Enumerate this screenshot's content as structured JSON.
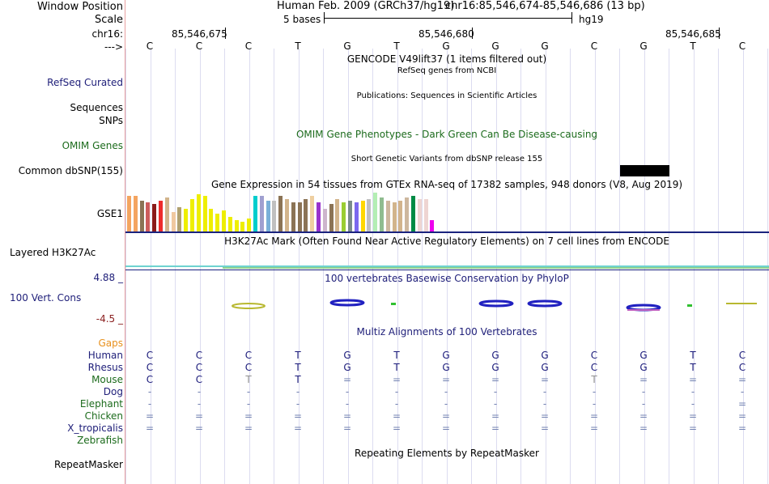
{
  "side_labels": {
    "window_position": "Window Position",
    "scale": "Scale",
    "chrom": "chr16:",
    "strand": "--->",
    "refseq": "RefSeq Curated",
    "sequences": "Sequences",
    "snps": "SNPs",
    "omim": "OMIM Genes",
    "dbsnp": "Common dbSNP(155)",
    "gse1": "GSE1",
    "h3k27ac": "Layered H3K27Ac",
    "cons_max": "4.88 _",
    "cons": "100 Vert. Cons",
    "cons_min": "-4.5 _",
    "gaps": "Gaps",
    "species": [
      "Human",
      "Rhesus",
      "Mouse",
      "Dog",
      "Elephant",
      "Chicken",
      "X_tropicalis",
      "Zebrafish"
    ],
    "repeatmasker": "RepeatMasker"
  },
  "header": {
    "assembly": "Human Feb. 2009 (GRCh37/hg19)",
    "position": "chr16:85,546,674-85,546,686 (13 bp)",
    "scale_text": "5 bases",
    "scale_db": "hg19",
    "ticks": [
      "85,546,675",
      "85,546,680",
      "85,546,685"
    ]
  },
  "bases": [
    "C",
    "C",
    "C",
    "T",
    "G",
    "T",
    "G",
    "G",
    "G",
    "C",
    "G",
    "T",
    "C"
  ],
  "tracks": {
    "gencode": "GENCODE V49lift37 (1 items filtered out)",
    "refseq": "RefSeq genes from NCBI",
    "publications": "Publications: Sequences in Scientific Articles",
    "omim": "OMIM Gene Phenotypes - Dark Green Can Be Disease-causing",
    "dbsnp": "Short Genetic Variants from dbSNP release 155",
    "gtex": "Gene Expression in 54 tissues from GTEx RNA-seq of 17382 samples, 948 donors (V8, Aug 2019)",
    "h3k27ac": "H3K27Ac Mark (Often Found Near Active Regulatory Elements) on 7 cell lines from ENCODE",
    "phylop": "100 vertebrates Basewise Conservation by PhyloP",
    "multiz": "Multiz Alignments of 100 Vertebrates",
    "repeatmasker": "Repeating Elements by RepeatMasker"
  },
  "alignment": [
    [
      "C",
      "C",
      "C",
      "T",
      "G",
      "T",
      "G",
      "G",
      "G",
      "C",
      "G",
      "T",
      "C"
    ],
    [
      "C",
      "C",
      "C",
      "T",
      "G",
      "T",
      "G",
      "G",
      "G",
      "C",
      "G",
      "T",
      "C"
    ],
    [
      "C",
      "C",
      "T",
      "T",
      "=",
      "=",
      "=",
      "=",
      "=",
      "T",
      "=",
      "=",
      "="
    ],
    [
      "-",
      "-",
      "-",
      "-",
      "-",
      "-",
      "-",
      "-",
      "-",
      "-",
      "-",
      "-",
      "-"
    ],
    [
      "-",
      "-",
      "-",
      "-",
      "-",
      "-",
      "-",
      "-",
      "-",
      "-",
      "-",
      "-",
      "="
    ],
    [
      "=",
      "=",
      "=",
      "=",
      "=",
      "=",
      "=",
      "=",
      "=",
      "=",
      "=",
      "=",
      "="
    ],
    [
      "=",
      "=",
      "=",
      "=",
      "=",
      "=",
      "=",
      "=",
      "=",
      "=",
      "=",
      "=",
      "="
    ],
    [
      "",
      "",
      "",
      "",
      "",
      "",
      "",
      "",
      "",
      "",
      "",
      "",
      ""
    ]
  ],
  "gtex_bars": [
    {
      "h": 44,
      "c": "#f4a460"
    },
    {
      "h": 44,
      "c": "#f4a460"
    },
    {
      "h": 38,
      "c": "#8b7355"
    },
    {
      "h": 36,
      "c": "#cd5c5c"
    },
    {
      "h": 34,
      "c": "#8b1a1a"
    },
    {
      "h": 38,
      "c": "#ee2c2c"
    },
    {
      "h": 42,
      "c": "#d2b48c"
    },
    {
      "h": 24,
      "c": "#f0c8a0"
    },
    {
      "h": 30,
      "c": "#b0a070"
    },
    {
      "h": 28,
      "c": "#eeee00"
    },
    {
      "h": 40,
      "c": "#eeee00"
    },
    {
      "h": 46,
      "c": "#eeee00"
    },
    {
      "h": 44,
      "c": "#eeee00"
    },
    {
      "h": 28,
      "c": "#eeee00"
    },
    {
      "h": 22,
      "c": "#eeee00"
    },
    {
      "h": 26,
      "c": "#eeee00"
    },
    {
      "h": 18,
      "c": "#eeee00"
    },
    {
      "h": 14,
      "c": "#eeee00"
    },
    {
      "h": 12,
      "c": "#eeee00"
    },
    {
      "h": 16,
      "c": "#eeee00"
    },
    {
      "h": 44,
      "c": "#00cdcd"
    },
    {
      "h": 44,
      "c": "#a0a0d0"
    },
    {
      "h": 38,
      "c": "#7ab0d8"
    },
    {
      "h": 38,
      "c": "#c0c0c0"
    },
    {
      "h": 44,
      "c": "#8b7355"
    },
    {
      "h": 40,
      "c": "#d2b48c"
    },
    {
      "h": 36,
      "c": "#8b7355"
    },
    {
      "h": 36,
      "c": "#8b7355"
    },
    {
      "h": 40,
      "c": "#8b7355"
    },
    {
      "h": 44,
      "c": "#eecfa1"
    },
    {
      "h": 36,
      "c": "#9932cc"
    },
    {
      "h": 28,
      "c": "#cdb5cd"
    },
    {
      "h": 34,
      "c": "#8b7355"
    },
    {
      "h": 40,
      "c": "#d2b48c"
    },
    {
      "h": 36,
      "c": "#9acd32"
    },
    {
      "h": 38,
      "c": "#7a8b8b"
    },
    {
      "h": 36,
      "c": "#7b68ee"
    },
    {
      "h": 38,
      "c": "#ffd700"
    },
    {
      "h": 40,
      "c": "#c0c0c0"
    },
    {
      "h": 48,
      "c": "#b4eeb4"
    },
    {
      "h": 42,
      "c": "#8fbc8f"
    },
    {
      "h": 38,
      "c": "#cdb79e"
    },
    {
      "h": 36,
      "c": "#d2b48c"
    },
    {
      "h": 38,
      "c": "#d2b48c"
    },
    {
      "h": 42,
      "c": "#cdb79e"
    },
    {
      "h": 44,
      "c": "#008b45"
    },
    {
      "h": 40,
      "c": "#eed5d2"
    },
    {
      "h": 40,
      "c": "#eed5d2"
    },
    {
      "h": 14,
      "c": "#ee00ee"
    }
  ]
}
